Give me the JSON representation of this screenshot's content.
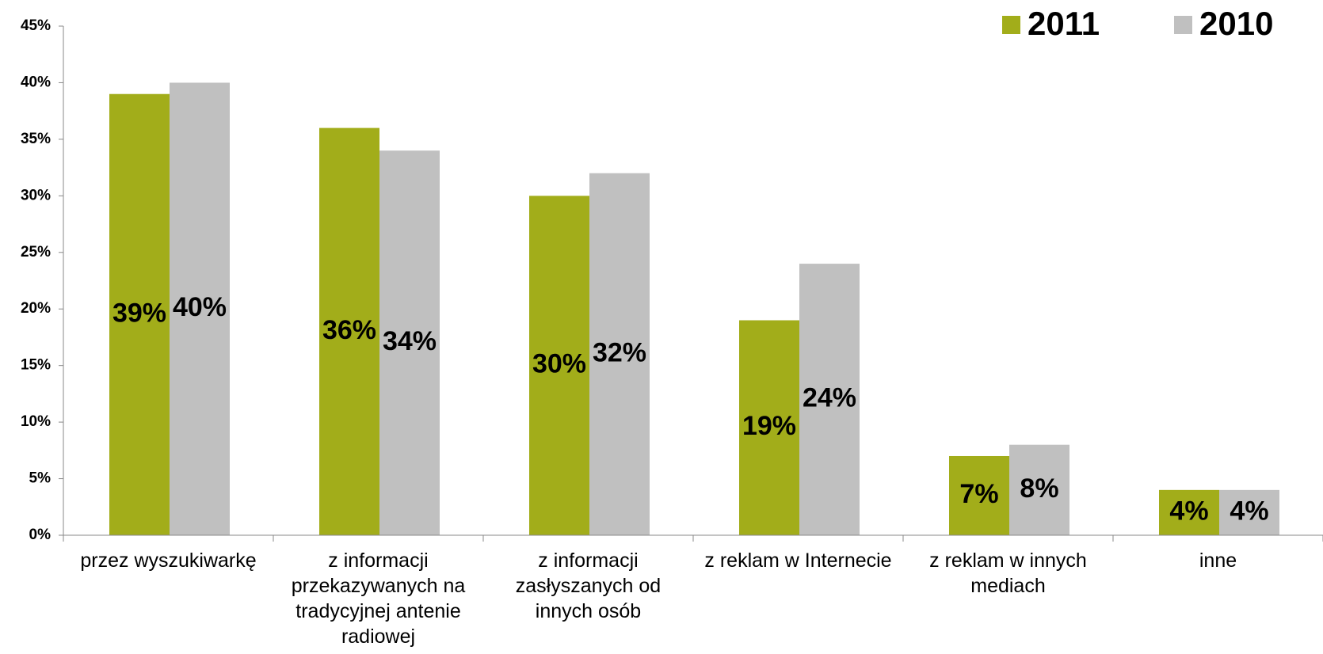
{
  "chart_data": {
    "type": "bar",
    "categories": [
      "przez wyszukiwarkę",
      "z informacji przekazywanych na tradycyjnej antenie radiowej",
      "z informacji zasłyszanych od innych osób",
      "z reklam w Internecie",
      "z reklam w innych mediach",
      "inne"
    ],
    "series": [
      {
        "name": "2011",
        "color": "#a2ad1a",
        "values": [
          39,
          36,
          30,
          19,
          7,
          4
        ],
        "value_labels": [
          "39%",
          "36%",
          "30%",
          "19%",
          "7%",
          "4%"
        ]
      },
      {
        "name": "2010",
        "color": "#c0c0c0",
        "values": [
          40,
          34,
          32,
          24,
          8,
          4
        ],
        "value_labels": [
          "40%",
          "34%",
          "32%",
          "24%",
          "8%",
          "4%"
        ]
      }
    ],
    "ylim": [
      0,
      45
    ],
    "yticks": [
      {
        "value": 0,
        "label": "0%"
      },
      {
        "value": 5,
        "label": "5%"
      },
      {
        "value": 10,
        "label": "10%"
      },
      {
        "value": 15,
        "label": "15%"
      },
      {
        "value": 20,
        "label": "20%"
      },
      {
        "value": 25,
        "label": "25%"
      },
      {
        "value": 30,
        "label": "30%"
      },
      {
        "value": 35,
        "label": "35%"
      },
      {
        "value": 40,
        "label": "40%"
      },
      {
        "value": 45,
        "label": "45%"
      }
    ],
    "legend": "top-right"
  }
}
